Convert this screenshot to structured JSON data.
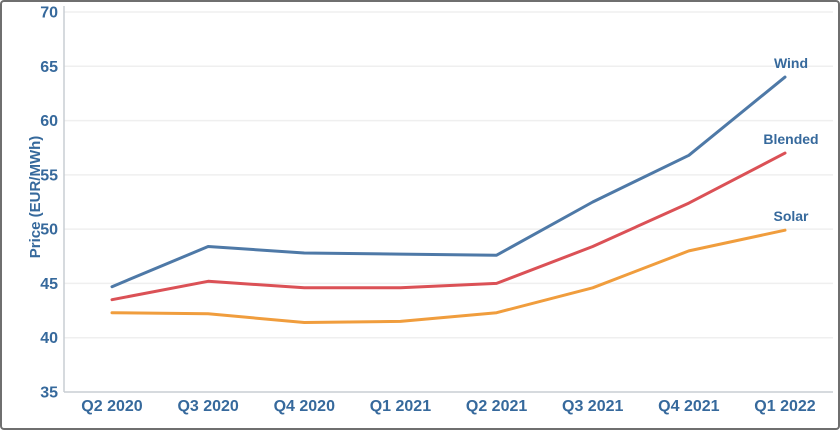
{
  "window": {
    "background": "#ffffff",
    "border_color": "#6f6f6f"
  },
  "chart_data": {
    "type": "line",
    "title": "",
    "ylabel": "Price (EUR/MWh)",
    "xlabel": "",
    "categories": [
      "Q2 2020",
      "Q3 2020",
      "Q4 2020",
      "Q1 2021",
      "Q2 2021",
      "Q3 2021",
      "Q4 2021",
      "Q1 2022"
    ],
    "series": [
      {
        "name": "Wind",
        "color": "#4e79a7",
        "values": [
          44.7,
          48.4,
          47.8,
          47.7,
          47.6,
          52.5,
          56.8,
          64.0
        ]
      },
      {
        "name": "Blended",
        "color": "#db5156",
        "values": [
          43.5,
          45.2,
          44.6,
          44.6,
          45.0,
          48.4,
          52.4,
          57.0
        ]
      },
      {
        "name": "Solar",
        "color": "#f09d3d",
        "values": [
          42.3,
          42.2,
          41.4,
          41.5,
          42.3,
          44.6,
          48.0,
          49.9
        ]
      }
    ],
    "ylim": [
      35,
      70
    ],
    "yticks": [
      35,
      40,
      45,
      50,
      55,
      60,
      65,
      70
    ],
    "grid": "horizontal",
    "legend_position": "line-end-labels",
    "styles": {
      "text_color": "#36699c",
      "gridline_color": "#efefef",
      "axis_line_color": "#c8cdd3",
      "line_width": 3,
      "tick_font_size": 16,
      "axis_title_font_size": 15,
      "series_label_font_size": 14
    }
  }
}
